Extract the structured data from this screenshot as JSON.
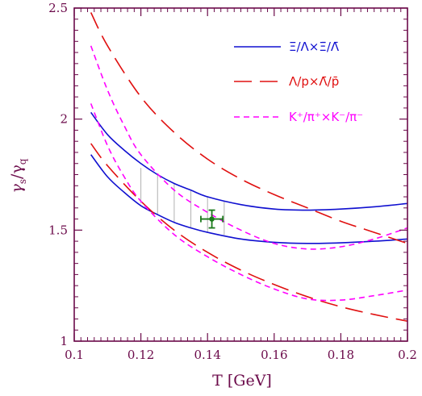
{
  "chart_data": {
    "type": "line",
    "xlabel": "T [GeV]",
    "ylabel_main": "γ",
    "ylabel_sub1": "s",
    "ylabel_slash": "/γ",
    "ylabel_sub2": "q",
    "xlim": [
      0.1,
      0.2
    ],
    "ylim": [
      1.0,
      2.5
    ],
    "x_ticks": [
      0.1,
      0.12,
      0.14,
      0.16,
      0.18,
      0.2
    ],
    "x_tick_labels": [
      "0.1",
      "0.12",
      "0.14",
      "0.16",
      "0.18",
      "0.2"
    ],
    "y_ticks": [
      1,
      1.5,
      2,
      2.5
    ],
    "y_tick_labels": [
      "1",
      "1.5",
      "2",
      "2.5"
    ],
    "grid": false,
    "legend_position": "top-right",
    "axis_color": "#6b0a4a",
    "legend": [
      {
        "label": "Ξ/Λ×Ξ̄/Λ̄",
        "color": "#1010d0",
        "dash": "solid"
      },
      {
        "label": "Λ/p×Λ̄/p̄",
        "color": "#e01010",
        "dash": "long-dash"
      },
      {
        "label": "K⁺/π⁺×K⁻/π⁻",
        "color": "#ff00ff",
        "dash": "short-dash"
      }
    ],
    "series": [
      {
        "group": 0,
        "color": "#1010d0",
        "dash": "solid",
        "x": [
          0.105,
          0.11,
          0.115,
          0.12,
          0.125,
          0.13,
          0.135,
          0.14,
          0.15,
          0.16,
          0.17,
          0.18,
          0.19,
          0.2
        ],
        "y": [
          2.03,
          1.93,
          1.86,
          1.8,
          1.75,
          1.71,
          1.68,
          1.65,
          1.615,
          1.595,
          1.59,
          1.595,
          1.605,
          1.62
        ]
      },
      {
        "group": 0,
        "color": "#1010d0",
        "dash": "solid",
        "x": [
          0.105,
          0.11,
          0.115,
          0.12,
          0.125,
          0.13,
          0.135,
          0.14,
          0.15,
          0.16,
          0.17,
          0.18,
          0.19,
          0.2
        ],
        "y": [
          1.84,
          1.74,
          1.67,
          1.61,
          1.57,
          1.535,
          1.51,
          1.49,
          1.46,
          1.445,
          1.44,
          1.443,
          1.45,
          1.46
        ]
      },
      {
        "group": 1,
        "color": "#e01010",
        "dash": "long-dash",
        "x": [
          0.105,
          0.11,
          0.12,
          0.13,
          0.14,
          0.15,
          0.16,
          0.17,
          0.18,
          0.19,
          0.2
        ],
        "y": [
          2.48,
          2.33,
          2.1,
          1.94,
          1.82,
          1.73,
          1.66,
          1.6,
          1.54,
          1.49,
          1.44
        ]
      },
      {
        "group": 1,
        "color": "#e01010",
        "dash": "long-dash",
        "x": [
          0.105,
          0.11,
          0.12,
          0.13,
          0.14,
          0.15,
          0.16,
          0.17,
          0.18,
          0.19,
          0.2
        ],
        "y": [
          1.89,
          1.79,
          1.63,
          1.5,
          1.4,
          1.32,
          1.255,
          1.2,
          1.155,
          1.12,
          1.09
        ]
      },
      {
        "group": 2,
        "color": "#ff00ff",
        "dash": "short-dash",
        "x": [
          0.105,
          0.11,
          0.115,
          0.12,
          0.13,
          0.14,
          0.15,
          0.16,
          0.17,
          0.18,
          0.19,
          0.2
        ],
        "y": [
          2.33,
          2.13,
          1.97,
          1.84,
          1.68,
          1.58,
          1.5,
          1.44,
          1.415,
          1.425,
          1.46,
          1.51
        ]
      },
      {
        "group": 2,
        "color": "#ff00ff",
        "dash": "short-dash",
        "x": [
          0.105,
          0.11,
          0.115,
          0.12,
          0.13,
          0.14,
          0.15,
          0.16,
          0.17,
          0.18,
          0.19,
          0.2
        ],
        "y": [
          2.07,
          1.88,
          1.74,
          1.63,
          1.48,
          1.38,
          1.3,
          1.235,
          1.19,
          1.185,
          1.205,
          1.23
        ]
      }
    ],
    "band": {
      "color": "#b0b0b0",
      "x": [
        0.12,
        0.125,
        0.13,
        0.135,
        0.14,
        0.145
      ],
      "y_low": [
        1.62,
        1.57,
        1.535,
        1.51,
        1.49,
        1.478
      ],
      "y_high": [
        1.78,
        1.75,
        1.71,
        1.68,
        1.65,
        1.63
      ]
    },
    "data_point": {
      "x": 0.1413,
      "y": 1.55,
      "x_err": 0.0033,
      "y_err": 0.04,
      "color": "#1a7a1a"
    }
  }
}
